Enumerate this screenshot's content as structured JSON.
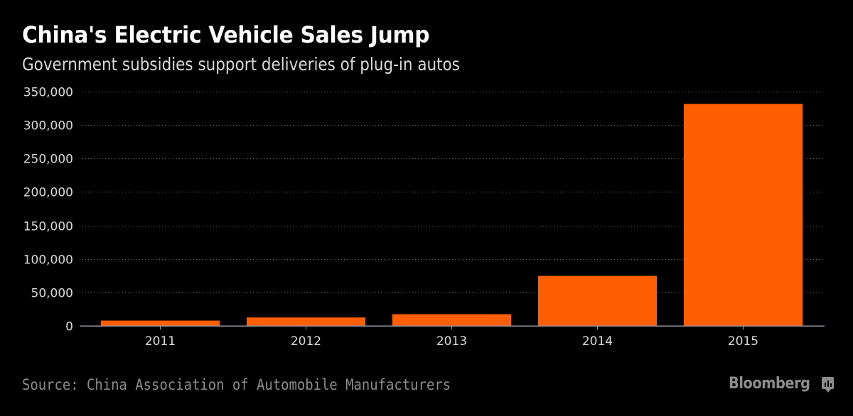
{
  "header": {
    "title": "China's Electric Vehicle Sales Jump",
    "subtitle": "Government subsidies support deliveries of plug-in autos"
  },
  "footer": {
    "source": "Source: China Association of Automobile Manufacturers",
    "brand": "Bloomberg",
    "brand_icon": "bloomberg-chart-icon"
  },
  "colors": {
    "background": "#000000",
    "bar": "#ff5f00",
    "gridline": "#6e6e6e",
    "axis": "#9a9aa8",
    "text": "#d9d9d9",
    "source_text": "#8c8c8c"
  },
  "chart_data": {
    "type": "bar",
    "title": "China's Electric Vehicle Sales Jump",
    "subtitle": "Government subsidies support deliveries of plug-in autos",
    "categories": [
      "2011",
      "2012",
      "2013",
      "2014",
      "2015"
    ],
    "values": [
      8159,
      12791,
      17642,
      74763,
      331092
    ],
    "xlabel": "",
    "ylabel": "",
    "ylim": [
      0,
      350000
    ],
    "yticks": [
      0,
      50000,
      100000,
      150000,
      200000,
      250000,
      300000,
      350000
    ],
    "ytick_labels": [
      "0",
      "50,000",
      "100,000",
      "150,000",
      "200,000",
      "250,000",
      "300,000",
      "350,000"
    ],
    "grid": "horizontal dotted",
    "legend": "none",
    "source": "Source: China Association of Automobile Manufacturers"
  }
}
